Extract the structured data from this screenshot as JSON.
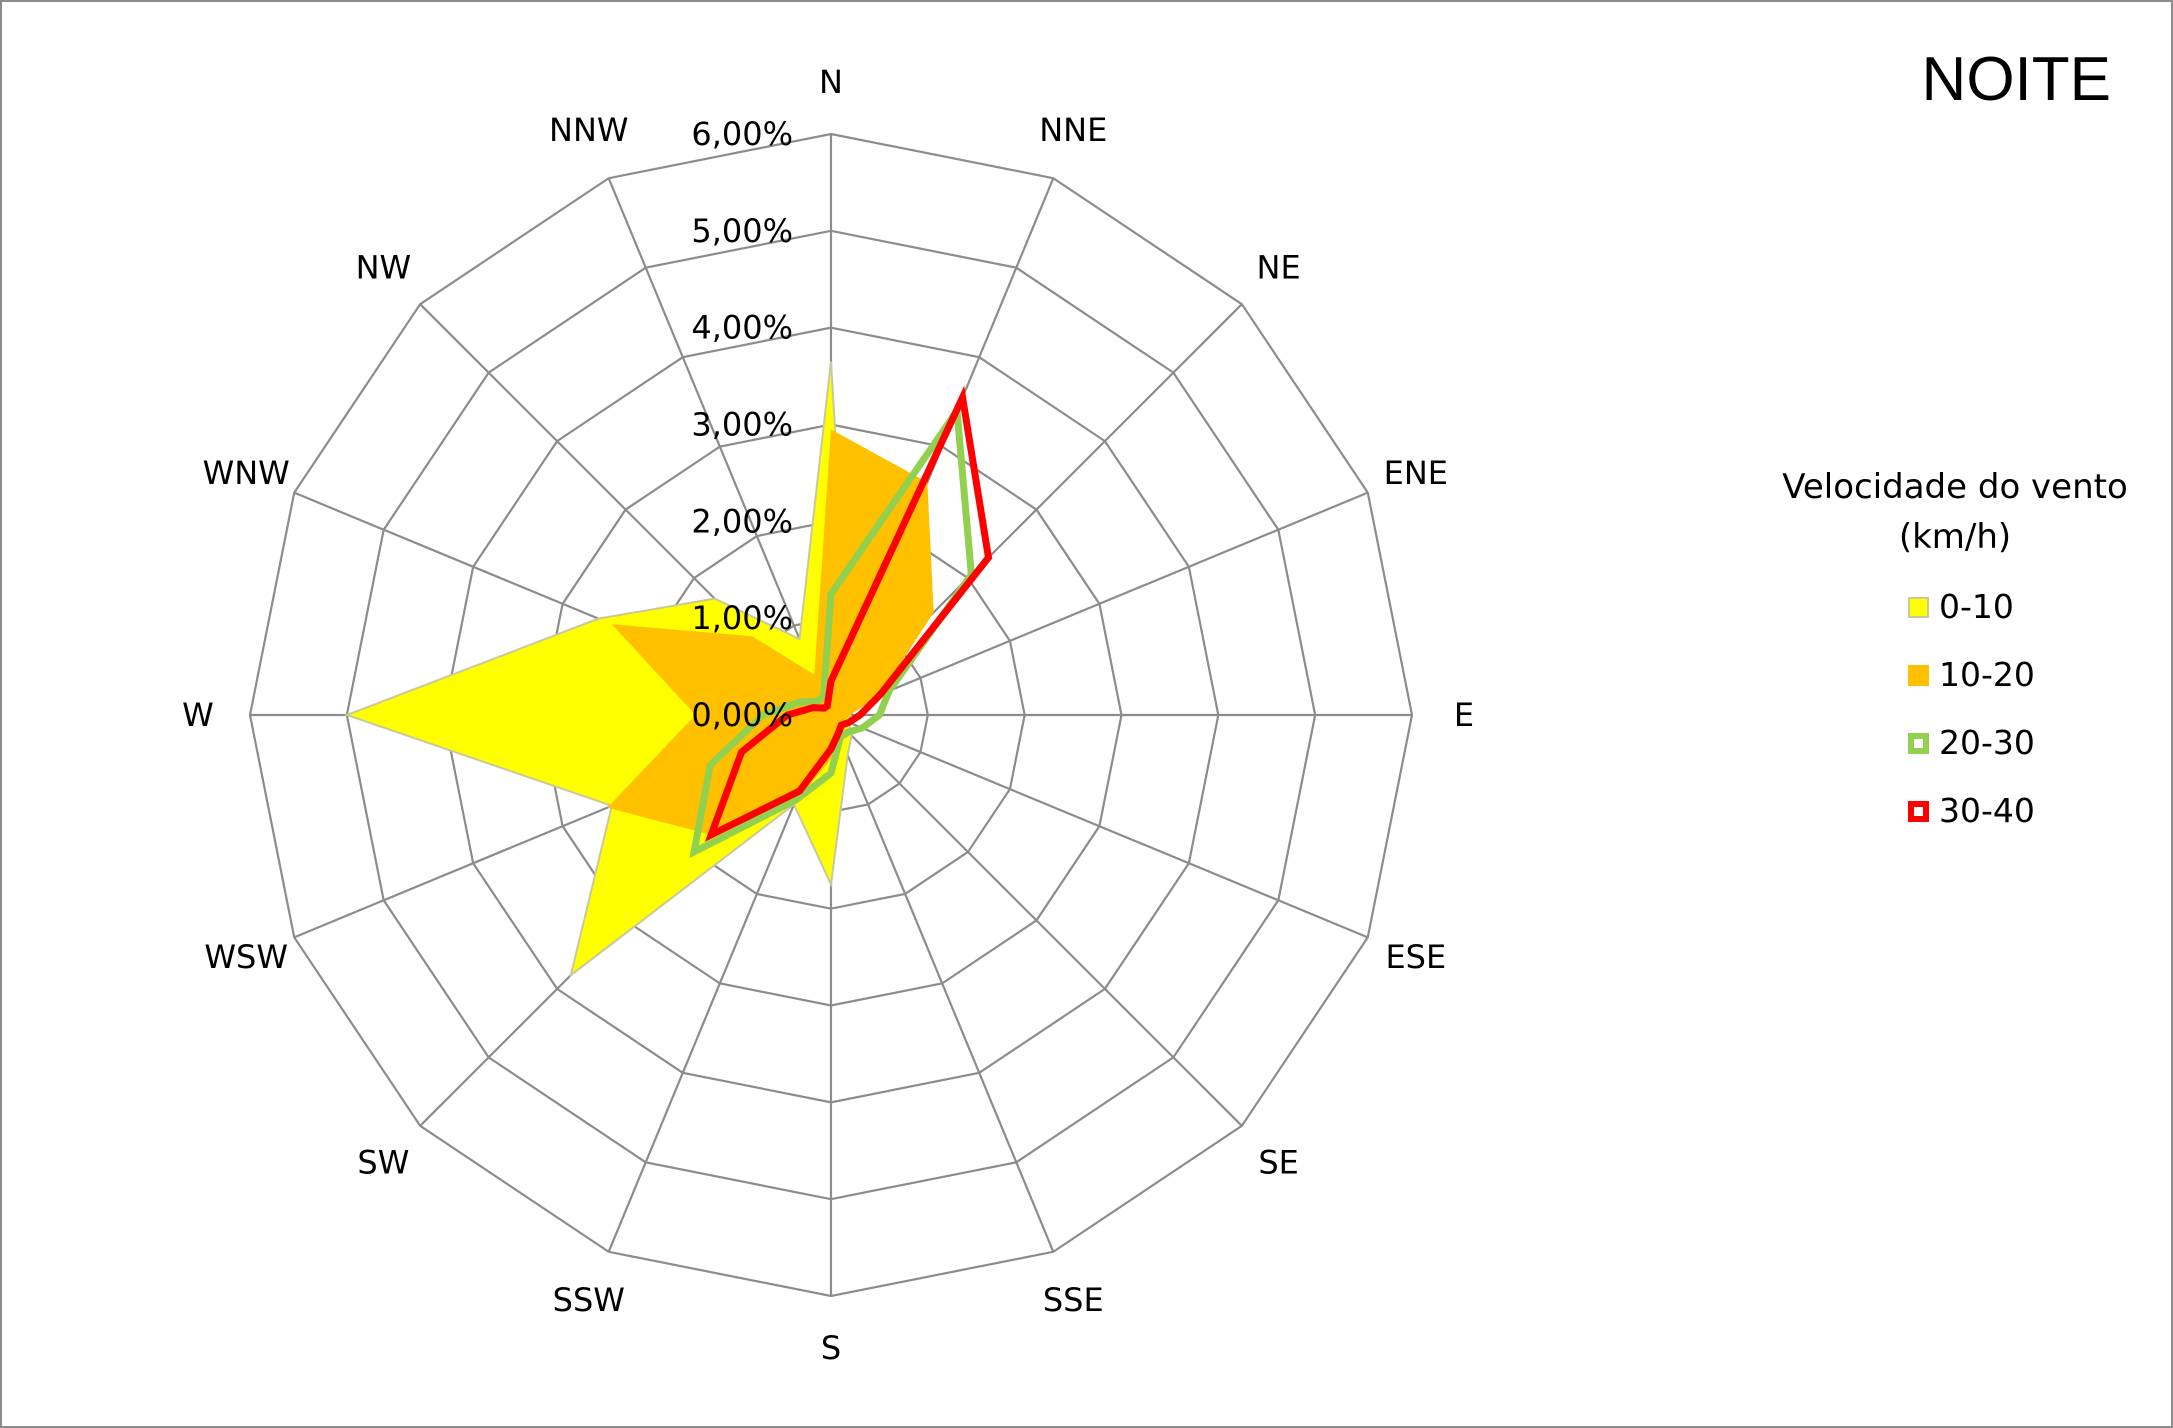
{
  "chart_data": {
    "type": "radar",
    "title": "NOITE",
    "legend_title": "Velocidade do vento (km/h)",
    "legend_position": "right",
    "categories": [
      "N",
      "NNE",
      "NE",
      "ENE",
      "E",
      "ESE",
      "SE",
      "SSE",
      "S",
      "SSW",
      "SW",
      "WSW",
      "W",
      "WNW",
      "NW",
      "NNW"
    ],
    "r_ticks": [
      "0,00%",
      "1,00%",
      "2,00%",
      "3,00%",
      "4,00%",
      "5,00%",
      "6,00%"
    ],
    "rlim": [
      0,
      6
    ],
    "grid": true,
    "series": [
      {
        "name": "0-10",
        "style": "filled",
        "color": "#FFFF00",
        "values": [
          3.65,
          0.5,
          0.6,
          0.2,
          0.2,
          0.2,
          0.3,
          0.45,
          1.75,
          1.0,
          3.8,
          2.45,
          5.0,
          2.6,
          1.7,
          0.85
        ]
      },
      {
        "name": "10-20",
        "style": "filled",
        "color": "#FFC000",
        "values": [
          2.95,
          2.6,
          1.5,
          0.55,
          0.2,
          0.15,
          0.2,
          0.3,
          0.45,
          1.0,
          1.75,
          2.5,
          1.4,
          2.45,
          1.15,
          0.45
        ]
      },
      {
        "name": "20-30",
        "style": "outline",
        "color": "#92D050",
        "values": [
          1.25,
          3.4,
          2.05,
          0.65,
          0.5,
          0.35,
          0.25,
          0.25,
          0.6,
          0.95,
          2.0,
          1.35,
          0.7,
          0.35,
          0.2,
          0.2
        ]
      },
      {
        "name": "30-40",
        "style": "outline",
        "color": "#FF0000",
        "values": [
          0.35,
          3.55,
          2.3,
          0.55,
          0.3,
          0.2,
          0.15,
          0.2,
          0.35,
          0.85,
          1.75,
          1.0,
          0.45,
          0.2,
          0.1,
          0.1
        ]
      }
    ]
  }
}
